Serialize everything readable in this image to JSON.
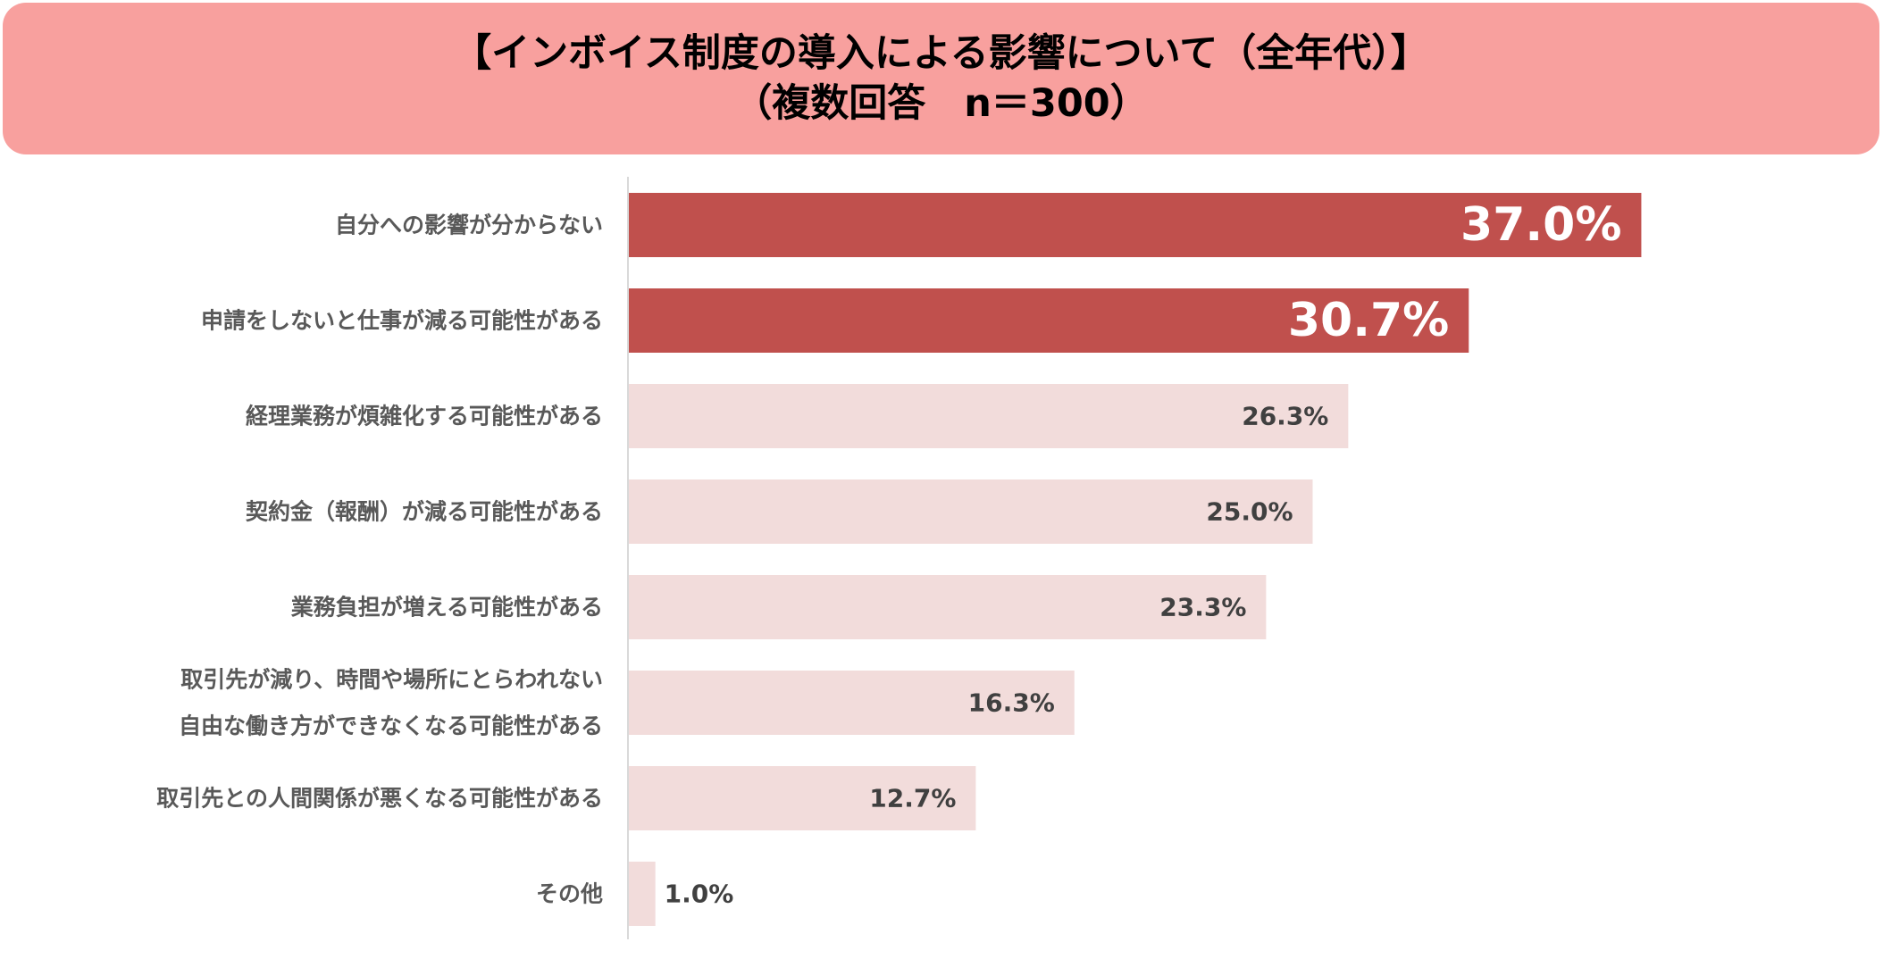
{
  "header": {
    "title_line1": "【インボイス制度の導入による影響について（全年代）】",
    "title_line2": "（複数回答　n＝300）"
  },
  "colors": {
    "header_bg": "#f8a09e",
    "highlight_bar": "#c0504d",
    "normal_bar": "#f2dcdb",
    "highlight_label": "#ffffff",
    "normal_label": "#404040",
    "category_label": "#595959",
    "axis": "#d9d9d9"
  },
  "chart_data": {
    "type": "bar",
    "orientation": "horizontal",
    "title": "【インボイス制度の導入による影響について（全年代）】（複数回答　n＝300）",
    "categories": [
      [
        "自分への影響が分からない"
      ],
      [
        "申請をしないと仕事が減る可能性がある"
      ],
      [
        "経理業務が煩雑化する可能性がある"
      ],
      [
        "契約金（報酬）が減る可能性がある"
      ],
      [
        "業務負担が増える可能性がある"
      ],
      [
        "取引先が減り、時間や場所にとらわれない",
        "自由な働き方ができなくなる可能性がある"
      ],
      [
        "取引先との人間関係が悪くなる可能性がある"
      ],
      [
        "その他"
      ]
    ],
    "values": [
      37.0,
      30.7,
      26.3,
      25.0,
      23.3,
      16.3,
      12.7,
      1.0
    ],
    "value_labels": [
      "37.0%",
      "30.7%",
      "26.3%",
      "25.0%",
      "23.3%",
      "16.3%",
      "12.7%",
      "1.0%"
    ],
    "highlight": [
      true,
      true,
      false,
      false,
      false,
      false,
      false,
      false
    ],
    "unit": "%",
    "xlim": [
      0,
      42.4
    ],
    "grid": false
  }
}
